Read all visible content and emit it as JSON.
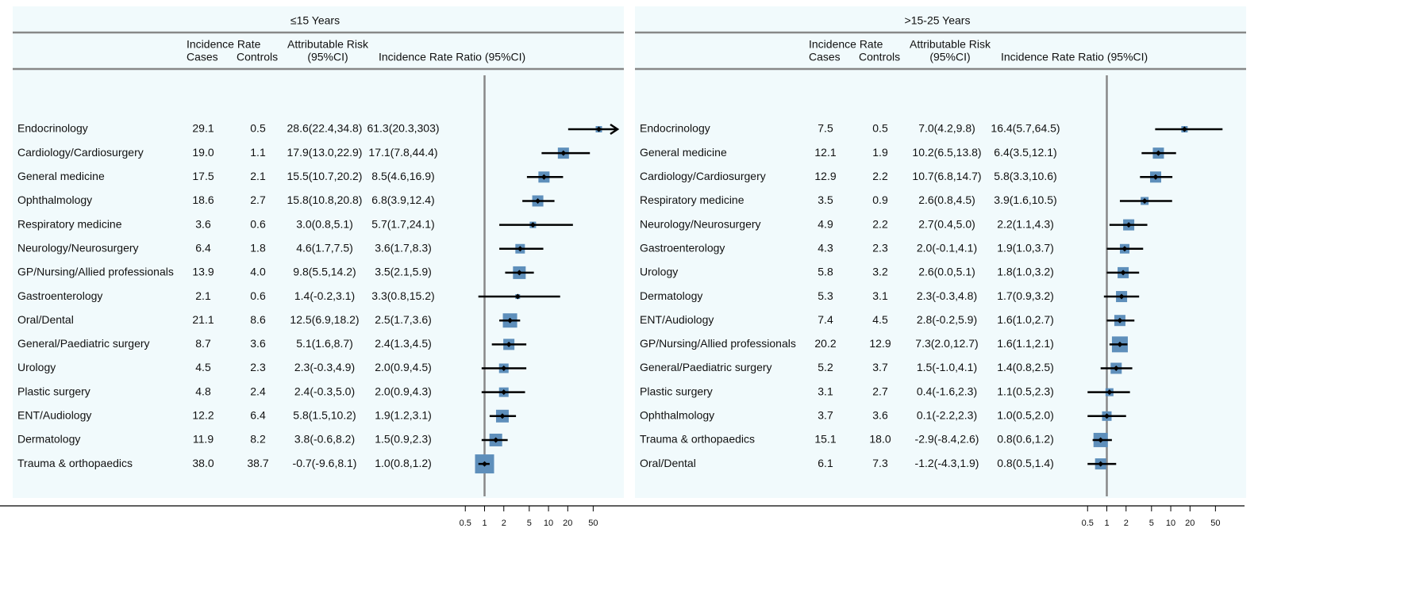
{
  "chart_data": [
    {
      "type": "forest",
      "title": "≤15 Years",
      "headers": {
        "rate": "Incidence Rate",
        "cases": "Cases",
        "controls": "Controls",
        "ar": "Attributable Risk",
        "ar_ci": "(95%CI)",
        "irr": "Incidence Rate Ratio (95%CI)"
      },
      "categories": [
        "Endocrinology",
        "Cardiology/Cardiosurgery",
        "General medicine",
        "Ophthalmology",
        "Respiratory medicine",
        "Neurology/Neurosurgery",
        "GP/Nursing/Allied professionals",
        "Gastroenterology",
        "Oral/Dental",
        "General/Paediatric surgery",
        "Urology",
        "Plastic surgery",
        "ENT/Audiology",
        "Dermatology",
        "Trauma & orthopaedics"
      ],
      "cases": [
        "29.1",
        "19.0",
        "17.5",
        "18.6",
        "3.6",
        "6.4",
        "13.9",
        "2.1",
        "21.1",
        "8.7",
        "4.5",
        "4.8",
        "12.2",
        "11.9",
        "38.0"
      ],
      "controls": [
        "0.5",
        "1.1",
        "2.1",
        "2.7",
        "0.6",
        "1.8",
        "4.0",
        "0.6",
        "8.6",
        "3.6",
        "2.3",
        "2.4",
        "6.4",
        "8.2",
        "38.7"
      ],
      "ar_labels": [
        "28.6(22.4,34.8)",
        "17.9(13.0,22.9)",
        "15.5(10.7,20.2)",
        "15.8(10.8,20.8)",
        "3.0(0.8,5.1)",
        "4.6(1.7,7.5)",
        "9.8(5.5,14.2)",
        "1.4(-0.2,3.1)",
        "12.5(6.9,18.2)",
        "5.1(1.6,8.7)",
        "2.3(-0.3,4.9)",
        "2.4(-0.3,5.0)",
        "5.8(1.5,10.2)",
        "3.8(-0.6,8.2)",
        "-0.7(-9.6,8.1)"
      ],
      "irr_labels": [
        "61.3(20.3,303)",
        "17.1(7.8,44.4)",
        "8.5(4.6,16.9)",
        "6.8(3.9,12.4)",
        "5.7(1.7,24.1)",
        "3.6(1.7,8.3)",
        "3.5(2.1,5.9)",
        "3.3(0.8,15.2)",
        "2.5(1.7,3.6)",
        "2.4(1.3,4.5)",
        "2.0(0.9,4.5)",
        "2.0(0.9,4.3)",
        "1.9(1.2,3.1)",
        "1.5(0.9,2.3)",
        "1.0(0.8,1.2)"
      ],
      "irr": [
        61.3,
        17.1,
        8.5,
        6.8,
        5.7,
        3.6,
        3.5,
        3.3,
        2.5,
        2.4,
        2.0,
        2.0,
        1.9,
        1.5,
        1.0
      ],
      "ci_low": [
        20.3,
        7.8,
        4.6,
        3.9,
        1.7,
        1.7,
        2.1,
        0.8,
        1.7,
        1.3,
        0.9,
        0.9,
        1.2,
        0.9,
        0.8
      ],
      "ci_high": [
        303,
        44.4,
        16.9,
        12.4,
        24.1,
        8.3,
        5.9,
        15.2,
        3.6,
        4.5,
        4.5,
        4.3,
        3.1,
        2.3,
        1.2
      ],
      "weights": [
        4,
        7,
        7,
        7,
        4,
        6,
        8,
        3,
        9,
        7,
        6,
        6,
        8,
        8,
        12
      ],
      "xlim": [
        0.25,
        120
      ],
      "xticks": [
        0.5,
        1,
        2,
        5,
        10,
        20,
        50
      ],
      "log_x": true,
      "reference": 1,
      "color": "#5e8fbb"
    },
    {
      "type": "forest",
      "title": ">15-25 Years",
      "headers": {
        "rate": "Incidence Rate",
        "cases": "Cases",
        "controls": "Controls",
        "ar": "Attributable Risk",
        "ar_ci": "(95%CI)",
        "irr": "Incidence Rate Ratio (95%CI)"
      },
      "categories": [
        "Endocrinology",
        "General medicine",
        "Cardiology/Cardiosurgery",
        "Respiratory medicine",
        "Neurology/Neurosurgery",
        "Gastroenterology",
        "Urology",
        "Dermatology",
        "ENT/Audiology",
        "GP/Nursing/Allied professionals",
        "General/Paediatric surgery",
        "Plastic surgery",
        "Ophthalmology",
        "Trauma & orthopaedics",
        "Oral/Dental"
      ],
      "cases": [
        "7.5",
        "12.1",
        "12.9",
        "3.5",
        "4.9",
        "4.3",
        "5.8",
        "5.3",
        "7.4",
        "20.2",
        "5.2",
        "3.1",
        "3.7",
        "15.1",
        "6.1"
      ],
      "controls": [
        "0.5",
        "1.9",
        "2.2",
        "0.9",
        "2.2",
        "2.3",
        "3.2",
        "3.1",
        "4.5",
        "12.9",
        "3.7",
        "2.7",
        "3.6",
        "18.0",
        "7.3"
      ],
      "ar_labels": [
        "7.0(4.2,9.8)",
        "10.2(6.5,13.8)",
        "10.7(6.8,14.7)",
        "2.6(0.8,4.5)",
        "2.7(0.4,5.0)",
        "2.0(-0.1,4.1)",
        "2.6(0.0,5.1)",
        "2.3(-0.3,4.8)",
        "2.8(-0.2,5.9)",
        "7.3(2.0,12.7)",
        "1.5(-1.0,4.1)",
        "0.4(-1.6,2.3)",
        "0.1(-2.2,2.3)",
        "-2.9(-8.4,2.6)",
        "-1.2(-4.3,1.9)"
      ],
      "irr_labels": [
        "16.4(5.7,64.5)",
        "6.4(3.5,12.1)",
        "5.8(3.3,10.6)",
        "3.9(1.6,10.5)",
        "2.2(1.1,4.3)",
        "1.9(1.0,3.7)",
        "1.8(1.0,3.2)",
        "1.7(0.9,3.2)",
        "1.6(1.0,2.7)",
        "1.6(1.1,2.1)",
        "1.4(0.8,2.5)",
        "1.1(0.5,2.3)",
        "1.0(0.5,2.0)",
        "0.8(0.6,1.2)",
        "0.8(0.5,1.4)"
      ],
      "irr": [
        16.4,
        6.4,
        5.8,
        3.9,
        2.2,
        1.9,
        1.8,
        1.7,
        1.6,
        1.6,
        1.4,
        1.1,
        1.0,
        0.8,
        0.8
      ],
      "ci_low": [
        5.7,
        3.5,
        3.3,
        1.6,
        1.1,
        1.0,
        1.0,
        0.9,
        1.0,
        1.1,
        0.8,
        0.5,
        0.5,
        0.6,
        0.5
      ],
      "ci_high": [
        64.5,
        12.1,
        10.6,
        10.5,
        4.3,
        3.7,
        3.2,
        3.2,
        2.7,
        2.1,
        2.5,
        2.3,
        2.0,
        1.2,
        1.4
      ],
      "weights": [
        4,
        7,
        7,
        5,
        7,
        6,
        7,
        7,
        7,
        10,
        7,
        5,
        6,
        9,
        7
      ],
      "xlim": [
        0.25,
        120
      ],
      "xticks": [
        0.5,
        1,
        2,
        5,
        10,
        20,
        50
      ],
      "log_x": true,
      "reference": 1,
      "color": "#5e8fbb"
    }
  ]
}
